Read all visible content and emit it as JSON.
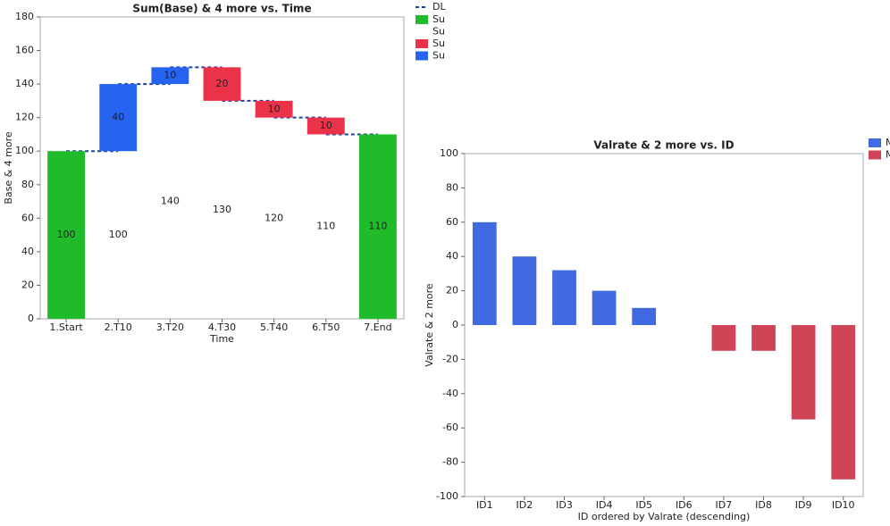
{
  "chart_data": [
    {
      "type": "bar",
      "stacked": true,
      "data_labels": true,
      "title": "Sum(Base) & 4 more vs. Time",
      "x_label": "Time",
      "y_label": "Base & 4 more",
      "categories": [
        "1.Start",
        "2.T10",
        "3.T20",
        "4.T30",
        "5.T40",
        "6.T50",
        "7.End"
      ],
      "lines": [
        {
          "name": "DL",
          "color": "#1f3fa0",
          "values": [
            100,
            140,
            150,
            130,
            120,
            110,
            null
          ]
        }
      ],
      "series": [
        {
          "name": "Su",
          "color": "#1fbb2b",
          "values": [
            100,
            null,
            null,
            null,
            null,
            null,
            110
          ]
        },
        {
          "name": "Su",
          "color": "none",
          "values": [
            null,
            100,
            140,
            130,
            120,
            110,
            null
          ]
        },
        {
          "name": "Su",
          "color": "#ea3348",
          "values": [
            null,
            null,
            null,
            20,
            10,
            10,
            null
          ]
        },
        {
          "name": "Su",
          "color": "#2563f0",
          "values": [
            null,
            40,
            10,
            null,
            null,
            null,
            null
          ]
        }
      ],
      "ylim": [
        0,
        180
      ],
      "yticks": [
        0,
        20,
        40,
        60,
        80,
        100,
        120,
        140,
        160,
        180
      ],
      "legend": "right"
    },
    {
      "type": "bar",
      "stacked": true,
      "data_labels": false,
      "title": "Valrate & 2 more vs. ID",
      "x_label": "ID ordered by Valrate (descending)",
      "y_label": "Valrate & 2 more",
      "categories": [
        "ID1",
        "ID2",
        "ID3",
        "ID4",
        "ID5",
        "ID6",
        "ID7",
        "ID8",
        "ID9",
        "ID10"
      ],
      "series": [
        {
          "name": "M",
          "color": "#4169e1",
          "values": [
            60,
            40,
            32,
            20,
            10,
            null,
            null,
            null,
            null,
            null
          ]
        },
        {
          "name": "M",
          "color": "#d04457",
          "values": [
            null,
            null,
            null,
            null,
            null,
            null,
            -15,
            -15,
            -55,
            -90
          ]
        }
      ],
      "ylim": [
        -100,
        100
      ],
      "yticks": [
        -100,
        -80,
        -60,
        -40,
        -20,
        0,
        20,
        40,
        60,
        80,
        100
      ],
      "legend": "right"
    }
  ]
}
